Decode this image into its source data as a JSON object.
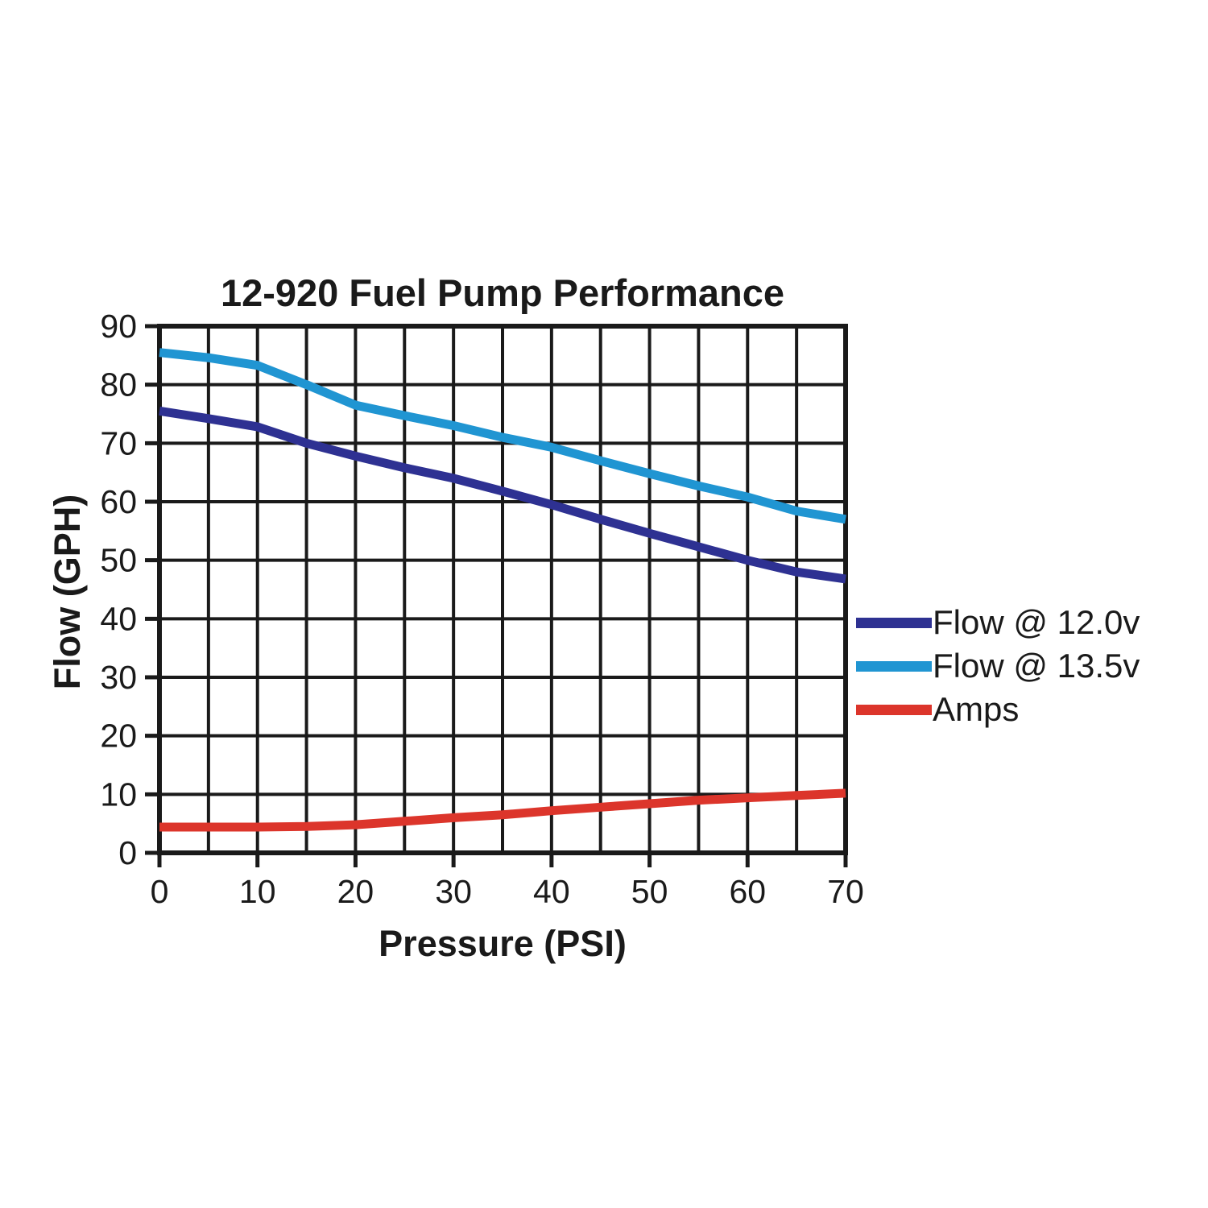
{
  "chart_data": {
    "type": "line",
    "title": "12-920 Fuel Pump Performance",
    "xlabel": "Pressure (PSI)",
    "ylabel": "Flow (GPH)",
    "xlim": [
      0,
      70
    ],
    "ylim": [
      0,
      90
    ],
    "x_ticks": [
      0,
      10,
      20,
      30,
      40,
      50,
      60,
      70
    ],
    "y_ticks": [
      0,
      10,
      20,
      30,
      40,
      50,
      60,
      70,
      80,
      90
    ],
    "x_grid_step": 5,
    "y_grid_step": 10,
    "grid": true,
    "legend_position": "right",
    "axis_color": "#1a1a1a",
    "x": [
      0,
      5,
      10,
      15,
      20,
      25,
      30,
      35,
      40,
      45,
      50,
      55,
      60,
      65,
      70
    ],
    "series": [
      {
        "name": "Flow @ 12.0v",
        "color": "#2e3192",
        "values": [
          75.5,
          74.2,
          72.8,
          70,
          67.8,
          65.8,
          64,
          61.8,
          59.5,
          57,
          54.6,
          52.3,
          50,
          48,
          46.8
        ]
      },
      {
        "name": "Flow @ 13.5v",
        "color": "#2095d2",
        "values": [
          85.5,
          84.6,
          83.3,
          80,
          76.5,
          74.7,
          73,
          71,
          69.3,
          67,
          64.8,
          62.7,
          60.8,
          58.4,
          57
        ]
      },
      {
        "name": "Amps",
        "color": "#dc352b",
        "values": [
          4.4,
          4.4,
          4.4,
          4.5,
          4.8,
          5.4,
          6,
          6.5,
          7.2,
          7.8,
          8.4,
          9,
          9.4,
          9.8,
          10.2
        ]
      }
    ]
  }
}
